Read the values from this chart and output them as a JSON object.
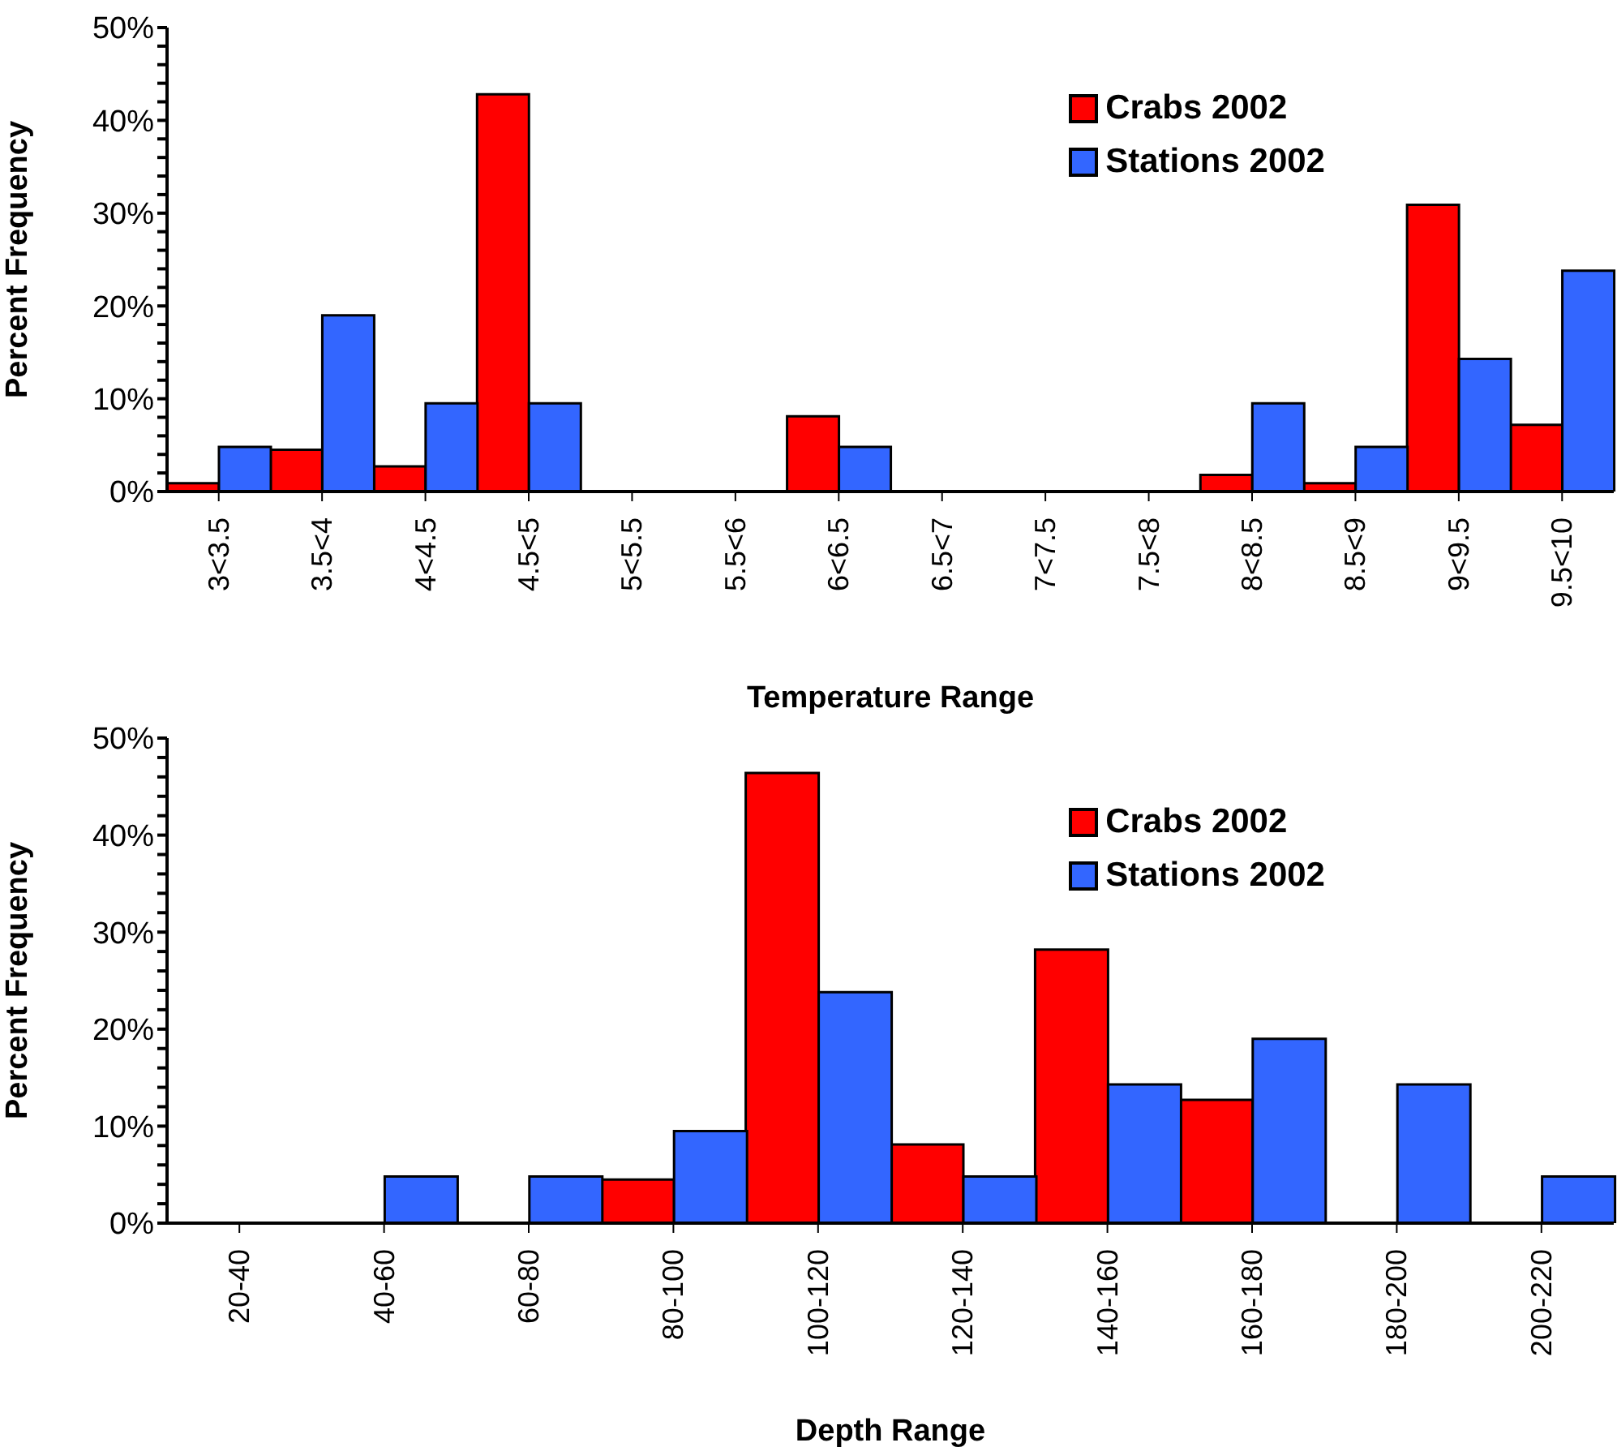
{
  "chart_data": [
    {
      "type": "bar",
      "xlabel": "Temperature Range",
      "ylabel": "Percent Frequency",
      "categories": [
        "3<3.5",
        "3.5<4",
        "4<4.5",
        "4.5<5",
        "5<5.5",
        "5.5<6",
        "6<6.5",
        "6.5<7",
        "7<7.5",
        "7.5<8",
        "8<8.5",
        "8.5<9",
        "9<9.5",
        "9.5<10"
      ],
      "series": [
        {
          "name": "Crabs 2002",
          "color": "#ff0000",
          "values": [
            0.9,
            4.5,
            2.7,
            42.8,
            0,
            0,
            8.1,
            0,
            0,
            0,
            1.8,
            0.9,
            30.9,
            7.2
          ]
        },
        {
          "name": "Stations 2002",
          "color": "#3366ff",
          "values": [
            4.8,
            19,
            9.5,
            9.5,
            0,
            0,
            4.8,
            0,
            0,
            0,
            9.5,
            4.8,
            14.3,
            23.8
          ]
        }
      ],
      "ylim": [
        0,
        50
      ],
      "yticks": [
        {
          "value": 0,
          "label": "0%"
        },
        {
          "value": 2,
          "label": null
        },
        {
          "value": 4,
          "label": null
        },
        {
          "value": 6,
          "label": null
        },
        {
          "value": 8,
          "label": null
        },
        {
          "value": 10,
          "label": "10%"
        },
        {
          "value": 12,
          "label": null
        },
        {
          "value": 14,
          "label": null
        },
        {
          "value": 16,
          "label": null
        },
        {
          "value": 18,
          "label": null
        },
        {
          "value": 20,
          "label": "20%"
        },
        {
          "value": 22,
          "label": null
        },
        {
          "value": 24,
          "label": null
        },
        {
          "value": 26,
          "label": null
        },
        {
          "value": 28,
          "label": null
        },
        {
          "value": 30,
          "label": "30%"
        },
        {
          "value": 32,
          "label": null
        },
        {
          "value": 34,
          "label": null
        },
        {
          "value": 36,
          "label": null
        },
        {
          "value": 38,
          "label": null
        },
        {
          "value": 40,
          "label": "40%"
        },
        {
          "value": 42,
          "label": null
        },
        {
          "value": 44,
          "label": null
        },
        {
          "value": 46,
          "label": null
        },
        {
          "value": 48,
          "label": null
        },
        {
          "value": 50,
          "label": "50%"
        }
      ],
      "legend": "top right"
    },
    {
      "type": "bar",
      "xlabel": "Depth Range",
      "ylabel": "Percent Frequency",
      "categories": [
        "20-40",
        "40-60",
        "60-80",
        "80-100",
        "100-120",
        "120-140",
        "140-160",
        "160-180",
        "180-200",
        "200-220"
      ],
      "series": [
        {
          "name": "Crabs 2002",
          "color": "#ff0000",
          "values": [
            0,
            0,
            0,
            4.5,
            46.4,
            8.1,
            28.2,
            12.7,
            0,
            0
          ]
        },
        {
          "name": "Stations 2002",
          "color": "#3366ff",
          "values": [
            0,
            4.8,
            4.8,
            9.5,
            23.8,
            4.8,
            14.3,
            19,
            14.3,
            4.8
          ]
        }
      ],
      "ylim": [
        0,
        50
      ],
      "yticks": [
        {
          "value": 0,
          "label": "0%"
        },
        {
          "value": 2,
          "label": null
        },
        {
          "value": 4,
          "label": null
        },
        {
          "value": 6,
          "label": null
        },
        {
          "value": 8,
          "label": null
        },
        {
          "value": 10,
          "label": "10%"
        },
        {
          "value": 12,
          "label": null
        },
        {
          "value": 14,
          "label": null
        },
        {
          "value": 16,
          "label": null
        },
        {
          "value": 18,
          "label": null
        },
        {
          "value": 20,
          "label": "20%"
        },
        {
          "value": 22,
          "label": null
        },
        {
          "value": 24,
          "label": null
        },
        {
          "value": 26,
          "label": null
        },
        {
          "value": 28,
          "label": null
        },
        {
          "value": 30,
          "label": "30%"
        },
        {
          "value": 32,
          "label": null
        },
        {
          "value": 34,
          "label": null
        },
        {
          "value": 36,
          "label": null
        },
        {
          "value": 38,
          "label": null
        },
        {
          "value": 40,
          "label": "40%"
        },
        {
          "value": 42,
          "label": null
        },
        {
          "value": 44,
          "label": null
        },
        {
          "value": 46,
          "label": null
        },
        {
          "value": 48,
          "label": null
        },
        {
          "value": 50,
          "label": "50%"
        }
      ],
      "legend": "top right"
    }
  ]
}
